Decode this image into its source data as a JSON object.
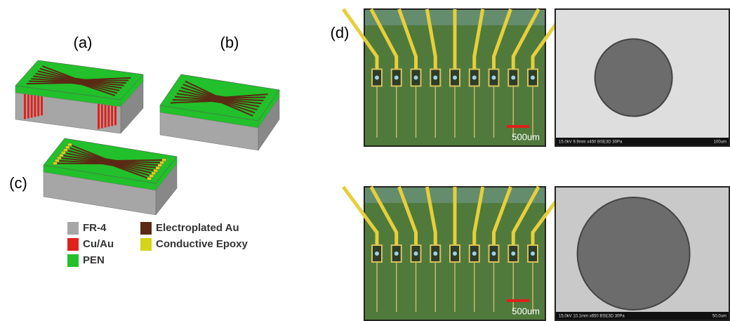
{
  "panels": {
    "a": "(a)",
    "b": "(b)",
    "c": "(c)",
    "d": "(d)"
  },
  "legend": [
    {
      "label": "FR-4",
      "color": "#a6a6a6"
    },
    {
      "label": "Cu/Au",
      "color": "#e0201b"
    },
    {
      "label": "PEN",
      "color": "#22c02a"
    },
    {
      "label": "Electroplated Au",
      "color": "#5a2a14"
    },
    {
      "label": "Conductive Epoxy",
      "color": "#d4d418"
    }
  ],
  "micrographs": [
    {
      "scale_label": "500um"
    },
    {
      "scale_label": "500um"
    }
  ],
  "sem": [
    {
      "caption": "15.0kV 9.9mm x450 BSE3D 30Pa",
      "scale_label": "100um"
    },
    {
      "caption": "15.0kV 10.1mm x650 BSE3D 30Pa",
      "scale_label": "50.0um"
    }
  ]
}
